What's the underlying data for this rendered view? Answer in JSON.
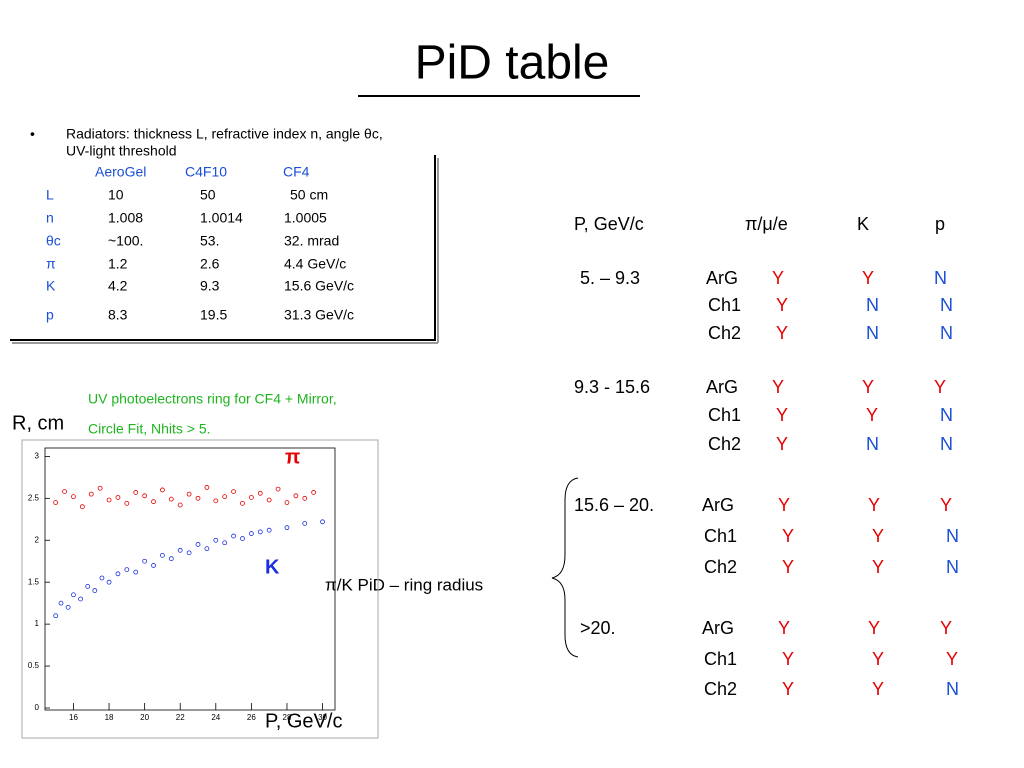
{
  "title": "PiD table",
  "bullet": {
    "line1": "Radiators: thickness L, refractive index n, angle θc,",
    "line2": "UV-light threshold"
  },
  "radiator_table": {
    "header": [
      "AeroGel",
      "C4F10",
      "CF4"
    ],
    "rows": [
      [
        "L",
        "10",
        "50",
        "50    cm"
      ],
      [
        "n",
        "1.008",
        "1.0014",
        "1.0005"
      ],
      [
        "θc",
        "~100.",
        "53.",
        "32.   mrad"
      ],
      [
        "π",
        "1.2",
        "2.6",
        "4.4  GeV/c"
      ],
      [
        "K",
        "4.2",
        "9.3",
        "15.6  GeV/c"
      ],
      [
        "p",
        "8.3",
        "19.5",
        "31.3  GeV/c"
      ]
    ]
  },
  "pid_table": {
    "header": [
      "P, GeV/c",
      "π/μ/e",
      "K",
      "p"
    ],
    "colors": {
      "Y": "#e60000",
      "N": "#1a4fd6"
    },
    "groups": [
      {
        "range": "5. – 9.3",
        "rows": [
          [
            "ArG",
            "Y",
            "Y",
            "N"
          ],
          [
            "Ch1",
            "Y",
            "N",
            "N"
          ],
          [
            "Ch2",
            "Y",
            "N",
            "N"
          ]
        ]
      },
      {
        "range": "9.3 - 15.6",
        "rows": [
          [
            "ArG",
            "Y",
            "Y",
            "Y"
          ],
          [
            "Ch1",
            "Y",
            "Y",
            "N"
          ],
          [
            "Ch2",
            "Y",
            "N",
            "N"
          ]
        ]
      },
      {
        "range": "15.6 – 20.",
        "rows": [
          [
            "ArG",
            "Y",
            "Y",
            "Y"
          ],
          [
            "Ch1",
            "Y",
            "Y",
            "N"
          ],
          [
            "Ch2",
            "Y",
            "Y",
            "N"
          ]
        ]
      },
      {
        "range": ">20.",
        "rows": [
          [
            "ArG",
            "Y",
            "Y",
            "Y"
          ],
          [
            "Ch1",
            "Y",
            "Y",
            "Y"
          ],
          [
            "Ch2",
            "Y",
            "Y",
            "N"
          ]
        ]
      }
    ]
  },
  "brace_label": "π/K PiD – ring radius",
  "chart_data": {
    "type": "scatter",
    "annotations": [
      "UV photoelectrons ring for CF4 + Mirror,",
      "Circle Fit,  Nhits > 5."
    ],
    "y_label": "R, cm",
    "x_label": "P, GeV/c",
    "xlim": [
      14.4,
      30.7
    ],
    "ylim": [
      0,
      3.1
    ],
    "xticks": [
      16,
      18,
      20,
      22,
      24,
      26,
      28,
      30
    ],
    "yticks": [
      0,
      0.5,
      1,
      1.5,
      2,
      2.5,
      3
    ],
    "series": [
      {
        "name": "π",
        "color": "#e60000",
        "x": [
          15,
          15.5,
          16,
          16.5,
          17,
          17.5,
          18,
          18.5,
          19,
          19.5,
          20,
          20.5,
          21,
          21.5,
          22,
          22.5,
          23,
          23.5,
          24,
          24.5,
          25,
          25.5,
          26,
          26.5,
          27,
          27.5,
          28,
          28.5,
          29,
          29.5
        ],
        "values": [
          2.45,
          2.58,
          2.52,
          2.4,
          2.55,
          2.62,
          2.48,
          2.51,
          2.44,
          2.57,
          2.53,
          2.46,
          2.6,
          2.49,
          2.42,
          2.55,
          2.5,
          2.63,
          2.47,
          2.52,
          2.58,
          2.44,
          2.51,
          2.56,
          2.48,
          2.61,
          2.45,
          2.53,
          2.5,
          2.57
        ]
      },
      {
        "name": "K",
        "color": "#1a2fe0",
        "x": [
          15,
          15.3,
          15.7,
          16,
          16.4,
          16.8,
          17.2,
          17.6,
          18,
          18.5,
          19,
          19.5,
          20,
          20.5,
          21,
          21.5,
          22,
          22.5,
          23,
          23.5,
          24,
          24.5,
          25,
          25.5,
          26,
          26.5,
          27,
          28,
          29,
          30
        ],
        "values": [
          1.1,
          1.25,
          1.2,
          1.35,
          1.3,
          1.45,
          1.4,
          1.55,
          1.5,
          1.6,
          1.65,
          1.62,
          1.75,
          1.7,
          1.82,
          1.78,
          1.88,
          1.85,
          1.95,
          1.9,
          2.0,
          1.97,
          2.05,
          2.02,
          2.08,
          2.1,
          2.12,
          2.15,
          2.2,
          2.22
        ]
      }
    ]
  }
}
